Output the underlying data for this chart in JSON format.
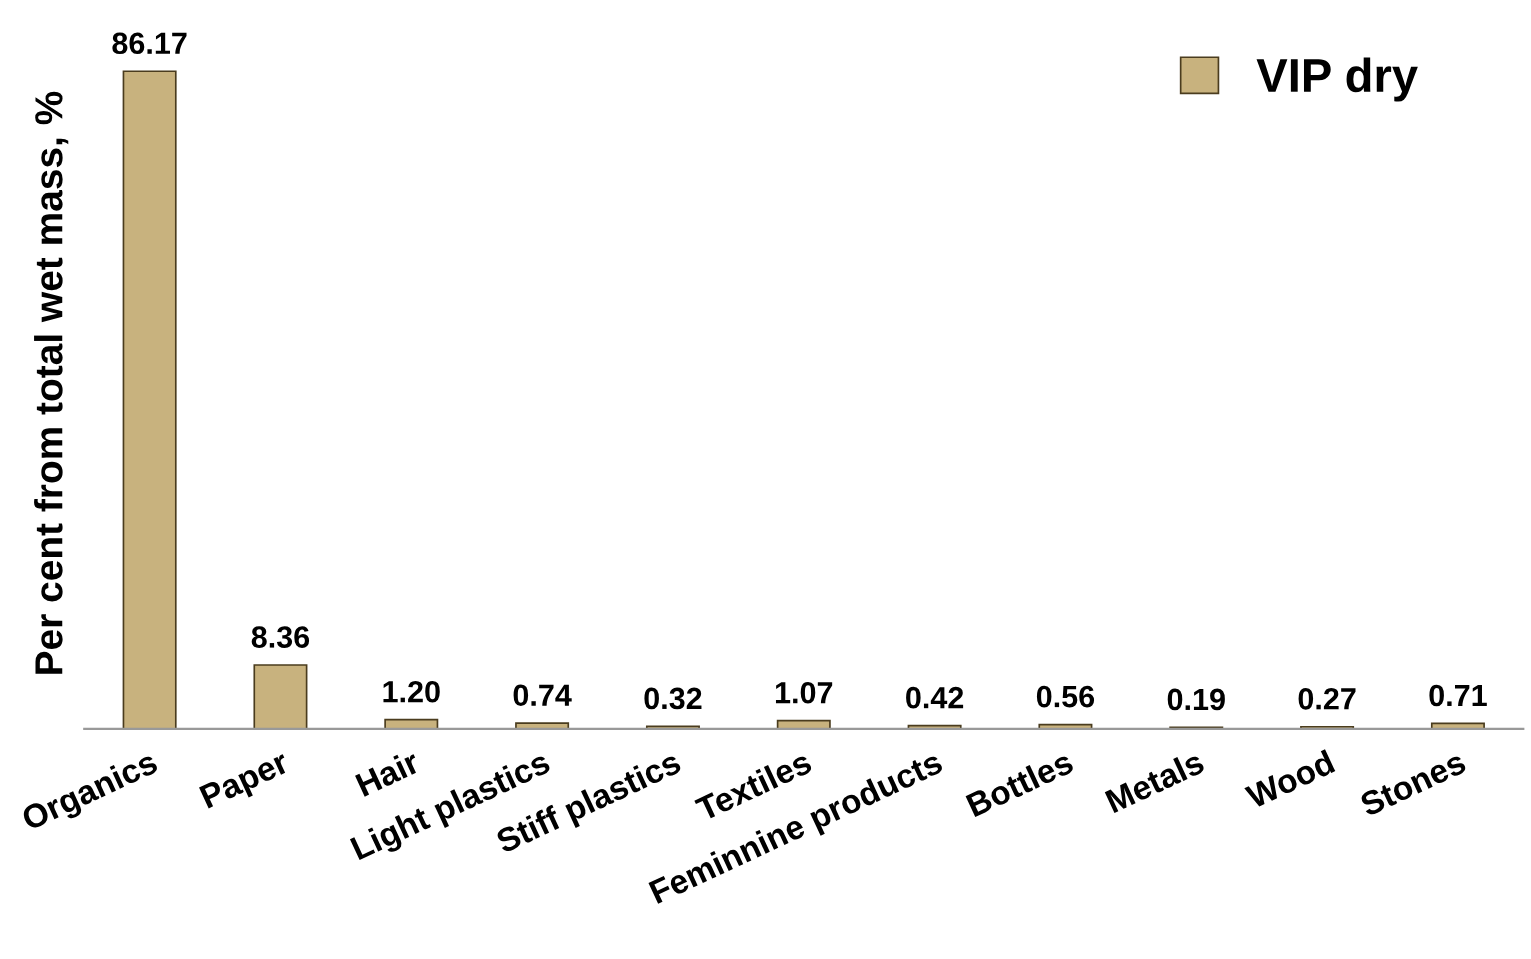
{
  "chart_data": {
    "type": "bar",
    "ylabel": "Per cent from total wet mass, %",
    "categories": [
      "Organics",
      "Paper",
      "Hair",
      "Light plastics",
      "Stiff plastics",
      "Textiles",
      "Feminnine products",
      "Bottles",
      "Metals",
      "Wood",
      "Stones"
    ],
    "series": [
      {
        "name": "VIP dry",
        "color": "#c8b27e",
        "values": [
          86.17,
          8.36,
          1.2,
          0.74,
          0.32,
          1.07,
          0.42,
          0.56,
          0.19,
          0.27,
          0.71
        ],
        "value_labels": [
          "86.17",
          "8.36",
          "1.20",
          "0.74",
          "0.32",
          "1.07",
          "0.42",
          "0.56",
          "0.19",
          "0.27",
          "0.71"
        ]
      }
    ],
    "legend": "top right",
    "grid": false,
    "tick_labels": "x"
  }
}
